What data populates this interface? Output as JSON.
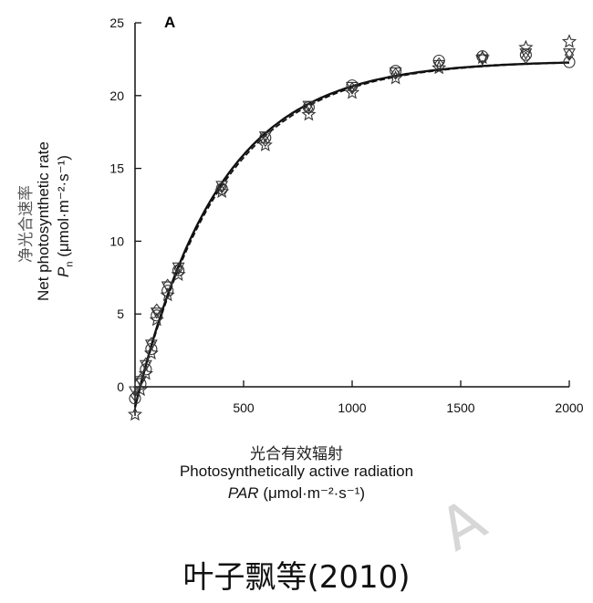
{
  "chart_data": {
    "type": "scatter",
    "panel_label": "A",
    "ylabel_cn": "净光合速率",
    "ylabel_en": "Net photosynthetic rate",
    "ylabel_symbol": "P",
    "ylabel_symbol_sub": "n",
    "ylabel_unit": "(μmol·m⁻²·s⁻¹)",
    "xlabel_cn": "光合有效辐射",
    "xlabel_en": "Photosynthetically active radiation",
    "xlabel_symbol": "PAR",
    "xlabel_unit": "(μmol·m⁻²·s⁻¹)",
    "xlim": [
      0,
      2000
    ],
    "ylim": [
      -2,
      25
    ],
    "x_ticks": [
      500,
      1000,
      1500,
      2000
    ],
    "y_ticks": [
      0,
      5,
      10,
      15,
      20,
      25
    ],
    "grid": false,
    "series": [
      {
        "marker": "circle",
        "x": [
          0,
          25,
          50,
          75,
          100,
          150,
          200,
          400,
          600,
          800,
          1000,
          1200,
          1400,
          1600,
          1800,
          2000
        ],
        "y": [
          -0.8,
          0.2,
          1.2,
          2.6,
          4.9,
          6.6,
          8.0,
          13.6,
          17.1,
          19.2,
          20.7,
          21.7,
          22.4,
          22.7,
          22.8,
          22.3
        ]
      },
      {
        "marker": "triangle-down",
        "x": [
          0,
          25,
          50,
          75,
          100,
          150,
          200,
          400,
          600,
          800,
          1000,
          1200,
          1400,
          1600,
          1800,
          2000
        ],
        "y": [
          -0.3,
          0.4,
          1.5,
          2.9,
          5.1,
          6.9,
          8.2,
          13.8,
          17.2,
          19.3,
          20.6,
          21.6,
          22.1,
          22.5,
          22.9,
          22.9
        ]
      },
      {
        "marker": "diamond",
        "x": [
          0,
          25,
          50,
          75,
          100,
          150,
          200,
          400,
          600,
          800,
          1000,
          1200,
          1400,
          1600,
          1800,
          2000
        ],
        "y": [
          -0.6,
          0.5,
          1.6,
          3.0,
          5.3,
          7.0,
          8.1,
          13.7,
          16.9,
          19.1,
          20.5,
          21.5,
          22.2,
          22.6,
          22.6,
          22.8
        ]
      },
      {
        "marker": "star",
        "x": [
          0,
          25,
          50,
          75,
          100,
          150,
          200,
          400,
          600,
          800,
          1000,
          1200,
          1400,
          1600,
          1800,
          2000
        ],
        "y": [
          -1.9,
          -0.2,
          0.9,
          2.3,
          4.6,
          6.3,
          7.7,
          13.4,
          16.6,
          18.7,
          20.2,
          21.2,
          21.9,
          22.6,
          23.3,
          23.7
        ]
      }
    ],
    "fit_curves": [
      {
        "style": "solid",
        "pmax": 23.8,
        "slope": 0.062,
        "rd": 1.4
      },
      {
        "style": "dashed",
        "pmax": 23.9,
        "slope": 0.061,
        "rd": 1.5
      }
    ]
  },
  "citation": "叶子飘等(2010)",
  "watermark": "A",
  "colors": {
    "ink": "#111111",
    "marker": "#333333",
    "watermark": "#d7d7d7"
  }
}
